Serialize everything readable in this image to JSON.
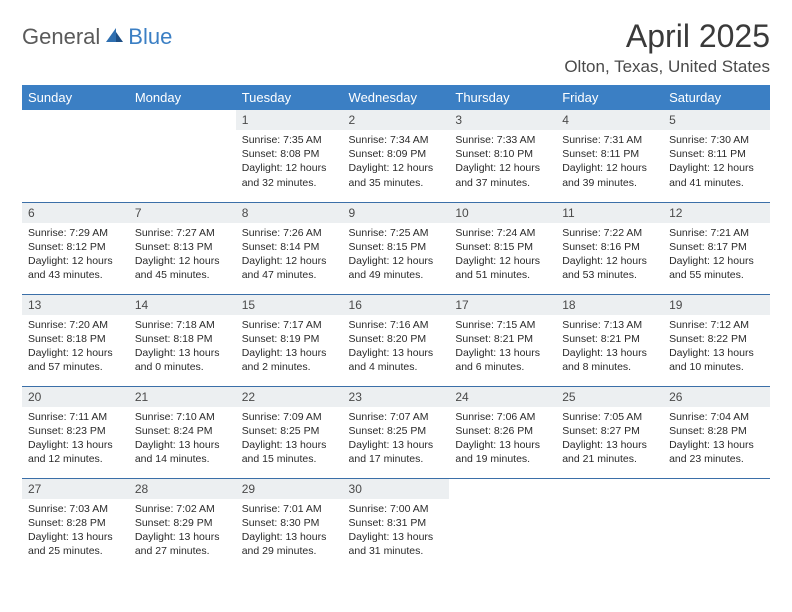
{
  "logo": {
    "text_a": "General",
    "text_b": "Blue"
  },
  "title": "April 2025",
  "location": "Olton, Texas, United States",
  "colors": {
    "header_bg": "#3b7fc4",
    "header_text": "#ffffff",
    "daynum_bg": "#eceff1",
    "row_border": "#3b6fa8",
    "text": "#2a2a2a",
    "logo_gray": "#5a5a5a",
    "logo_blue": "#3b7fc4"
  },
  "weekdays": [
    "Sunday",
    "Monday",
    "Tuesday",
    "Wednesday",
    "Thursday",
    "Friday",
    "Saturday"
  ],
  "first_weekday_index": 2,
  "days": [
    {
      "n": 1,
      "sunrise": "7:35 AM",
      "sunset": "8:08 PM",
      "daylight": "12 hours and 32 minutes."
    },
    {
      "n": 2,
      "sunrise": "7:34 AM",
      "sunset": "8:09 PM",
      "daylight": "12 hours and 35 minutes."
    },
    {
      "n": 3,
      "sunrise": "7:33 AM",
      "sunset": "8:10 PM",
      "daylight": "12 hours and 37 minutes."
    },
    {
      "n": 4,
      "sunrise": "7:31 AM",
      "sunset": "8:11 PM",
      "daylight": "12 hours and 39 minutes."
    },
    {
      "n": 5,
      "sunrise": "7:30 AM",
      "sunset": "8:11 PM",
      "daylight": "12 hours and 41 minutes."
    },
    {
      "n": 6,
      "sunrise": "7:29 AM",
      "sunset": "8:12 PM",
      "daylight": "12 hours and 43 minutes."
    },
    {
      "n": 7,
      "sunrise": "7:27 AM",
      "sunset": "8:13 PM",
      "daylight": "12 hours and 45 minutes."
    },
    {
      "n": 8,
      "sunrise": "7:26 AM",
      "sunset": "8:14 PM",
      "daylight": "12 hours and 47 minutes."
    },
    {
      "n": 9,
      "sunrise": "7:25 AM",
      "sunset": "8:15 PM",
      "daylight": "12 hours and 49 minutes."
    },
    {
      "n": 10,
      "sunrise": "7:24 AM",
      "sunset": "8:15 PM",
      "daylight": "12 hours and 51 minutes."
    },
    {
      "n": 11,
      "sunrise": "7:22 AM",
      "sunset": "8:16 PM",
      "daylight": "12 hours and 53 minutes."
    },
    {
      "n": 12,
      "sunrise": "7:21 AM",
      "sunset": "8:17 PM",
      "daylight": "12 hours and 55 minutes."
    },
    {
      "n": 13,
      "sunrise": "7:20 AM",
      "sunset": "8:18 PM",
      "daylight": "12 hours and 57 minutes."
    },
    {
      "n": 14,
      "sunrise": "7:18 AM",
      "sunset": "8:18 PM",
      "daylight": "13 hours and 0 minutes."
    },
    {
      "n": 15,
      "sunrise": "7:17 AM",
      "sunset": "8:19 PM",
      "daylight": "13 hours and 2 minutes."
    },
    {
      "n": 16,
      "sunrise": "7:16 AM",
      "sunset": "8:20 PM",
      "daylight": "13 hours and 4 minutes."
    },
    {
      "n": 17,
      "sunrise": "7:15 AM",
      "sunset": "8:21 PM",
      "daylight": "13 hours and 6 minutes."
    },
    {
      "n": 18,
      "sunrise": "7:13 AM",
      "sunset": "8:21 PM",
      "daylight": "13 hours and 8 minutes."
    },
    {
      "n": 19,
      "sunrise": "7:12 AM",
      "sunset": "8:22 PM",
      "daylight": "13 hours and 10 minutes."
    },
    {
      "n": 20,
      "sunrise": "7:11 AM",
      "sunset": "8:23 PM",
      "daylight": "13 hours and 12 minutes."
    },
    {
      "n": 21,
      "sunrise": "7:10 AM",
      "sunset": "8:24 PM",
      "daylight": "13 hours and 14 minutes."
    },
    {
      "n": 22,
      "sunrise": "7:09 AM",
      "sunset": "8:25 PM",
      "daylight": "13 hours and 15 minutes."
    },
    {
      "n": 23,
      "sunrise": "7:07 AM",
      "sunset": "8:25 PM",
      "daylight": "13 hours and 17 minutes."
    },
    {
      "n": 24,
      "sunrise": "7:06 AM",
      "sunset": "8:26 PM",
      "daylight": "13 hours and 19 minutes."
    },
    {
      "n": 25,
      "sunrise": "7:05 AM",
      "sunset": "8:27 PM",
      "daylight": "13 hours and 21 minutes."
    },
    {
      "n": 26,
      "sunrise": "7:04 AM",
      "sunset": "8:28 PM",
      "daylight": "13 hours and 23 minutes."
    },
    {
      "n": 27,
      "sunrise": "7:03 AM",
      "sunset": "8:28 PM",
      "daylight": "13 hours and 25 minutes."
    },
    {
      "n": 28,
      "sunrise": "7:02 AM",
      "sunset": "8:29 PM",
      "daylight": "13 hours and 27 minutes."
    },
    {
      "n": 29,
      "sunrise": "7:01 AM",
      "sunset": "8:30 PM",
      "daylight": "13 hours and 29 minutes."
    },
    {
      "n": 30,
      "sunrise": "7:00 AM",
      "sunset": "8:31 PM",
      "daylight": "13 hours and 31 minutes."
    }
  ],
  "labels": {
    "sunrise": "Sunrise:",
    "sunset": "Sunset:",
    "daylight": "Daylight:"
  }
}
